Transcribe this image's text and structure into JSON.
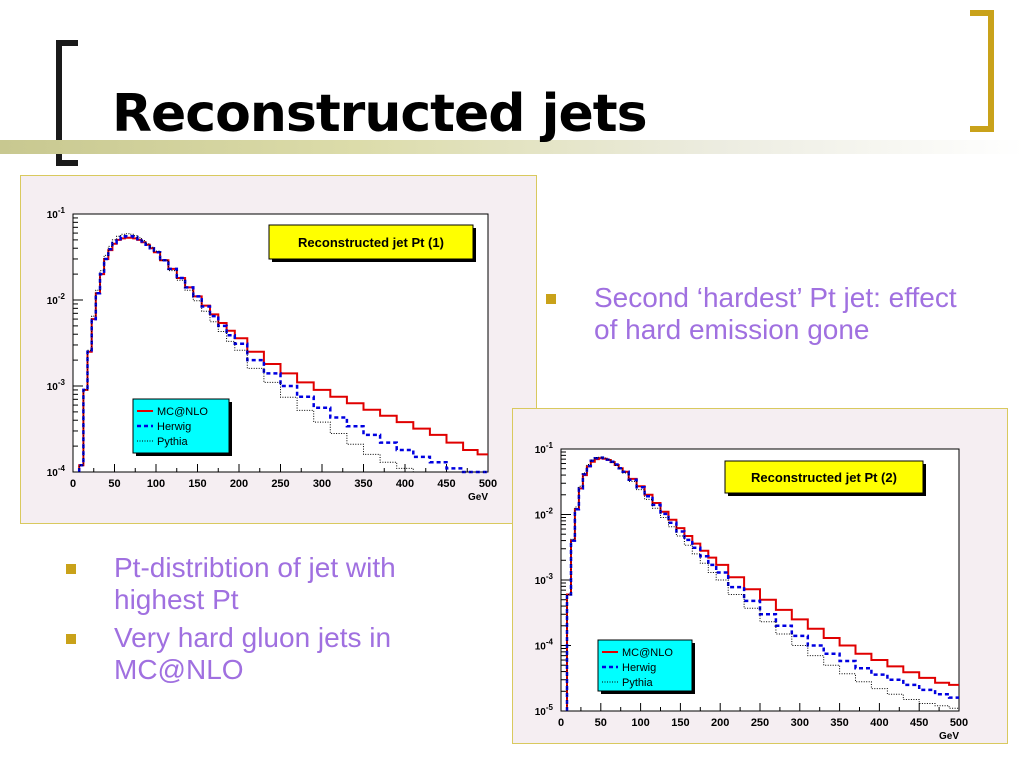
{
  "slide": {
    "title": "Reconstructed jets",
    "accent_color": "#c9a21a",
    "text_color": "#a070e0"
  },
  "bullets_right": [
    "Second ‘hardest’ Pt jet: effect of hard emission gone"
  ],
  "bullets_left": [
    "Pt-distribtion of jet with highest Pt",
    "Very hard gluon jets in MC@NLO"
  ],
  "chart_data": [
    {
      "type": "line",
      "title": "Reconstructed jet Pt (1)",
      "xlabel": "GeV",
      "ylabel": "",
      "xlim": [
        0,
        500
      ],
      "ylim": [
        0.0001,
        0.1
      ],
      "yscale": "log",
      "x_ticks": [
        "0",
        "50",
        "100",
        "150",
        "200",
        "250",
        "300",
        "350",
        "400",
        "450",
        "500"
      ],
      "y_ticks": [
        {
          "base": "10",
          "exp": "-1",
          "value": 0.1
        },
        {
          "base": "10",
          "exp": "-2",
          "value": 0.01
        },
        {
          "base": "10",
          "exp": "-3",
          "value": 0.001
        },
        {
          "base": "10",
          "exp": "-4",
          "value": 0.0001
        }
      ],
      "legend_position": "lower-left",
      "x": [
        10,
        15,
        20,
        25,
        30,
        35,
        40,
        45,
        50,
        55,
        60,
        65,
        70,
        75,
        80,
        85,
        90,
        95,
        100,
        110,
        120,
        130,
        140,
        150,
        160,
        170,
        180,
        190,
        200,
        220,
        240,
        260,
        280,
        300,
        320,
        340,
        360,
        380,
        400,
        420,
        440,
        460,
        480,
        495
      ],
      "series": [
        {
          "name": "MC@NLO",
          "color": "#e00000",
          "style": "solid",
          "values": [
            0.00012,
            0.0009,
            0.0025,
            0.006,
            0.012,
            0.02,
            0.03,
            0.038,
            0.045,
            0.05,
            0.052,
            0.053,
            0.053,
            0.052,
            0.05,
            0.047,
            0.044,
            0.04,
            0.036,
            0.029,
            0.023,
            0.018,
            0.014,
            0.011,
            0.0086,
            0.0068,
            0.0054,
            0.0044,
            0.0036,
            0.0025,
            0.0018,
            0.0014,
            0.0011,
            0.0009,
            0.00075,
            0.00063,
            0.00053,
            0.00045,
            0.00038,
            0.00032,
            0.00027,
            0.00022,
            0.00018,
            0.00016
          ]
        },
        {
          "name": "Herwig",
          "color": "#0000e0",
          "style": "dashed",
          "values": [
            0.00012,
            0.0009,
            0.0025,
            0.006,
            0.012,
            0.02,
            0.03,
            0.039,
            0.046,
            0.051,
            0.054,
            0.055,
            0.055,
            0.054,
            0.051,
            0.048,
            0.044,
            0.04,
            0.036,
            0.029,
            0.023,
            0.018,
            0.014,
            0.011,
            0.0084,
            0.0065,
            0.005,
            0.0039,
            0.0031,
            0.002,
            0.0014,
            0.001,
            0.00075,
            0.00056,
            0.00043,
            0.00034,
            0.00027,
            0.00022,
            0.00018,
            0.00015,
            0.00013,
            0.00011,
            0.0001,
            0.0001
          ]
        },
        {
          "name": "Pythia",
          "color": "#000000",
          "style": "dotted",
          "values": [
            0.00012,
            0.0009,
            0.0026,
            0.0065,
            0.013,
            0.022,
            0.033,
            0.042,
            0.05,
            0.055,
            0.058,
            0.059,
            0.058,
            0.056,
            0.053,
            0.049,
            0.045,
            0.041,
            0.037,
            0.029,
            0.022,
            0.017,
            0.013,
            0.0098,
            0.0074,
            0.0056,
            0.0043,
            0.0033,
            0.0026,
            0.0016,
            0.0011,
            0.00074,
            0.00052,
            0.00038,
            0.00028,
            0.00021,
            0.00016,
            0.00013,
            0.00011,
            0.0001,
            0.0001,
            0.0001,
            0.0001,
            0.0001
          ]
        }
      ]
    },
    {
      "type": "line",
      "title": "Reconstructed jet Pt (2)",
      "xlabel": "GeV",
      "ylabel": "",
      "xlim": [
        0,
        500
      ],
      "ylim": [
        1e-05,
        0.1
      ],
      "yscale": "log",
      "x_ticks": [
        "0",
        "50",
        "100",
        "150",
        "200",
        "250",
        "300",
        "350",
        "400",
        "450",
        "500"
      ],
      "y_ticks": [
        {
          "base": "10",
          "exp": "-1",
          "value": 0.1
        },
        {
          "base": "10",
          "exp": "-2",
          "value": 0.01
        },
        {
          "base": "10",
          "exp": "-3",
          "value": 0.001
        },
        {
          "base": "10",
          "exp": "-4",
          "value": 0.0001
        },
        {
          "base": "10",
          "exp": "-5",
          "value": 1e-05
        }
      ],
      "legend_position": "lower-left",
      "x": [
        10,
        15,
        20,
        25,
        30,
        35,
        40,
        45,
        50,
        55,
        60,
        65,
        70,
        75,
        80,
        90,
        100,
        110,
        120,
        130,
        140,
        150,
        160,
        170,
        180,
        190,
        200,
        220,
        240,
        260,
        280,
        300,
        320,
        340,
        360,
        380,
        400,
        420,
        440,
        460,
        480,
        495
      ],
      "series": [
        {
          "name": "MC@NLO",
          "color": "#e00000",
          "style": "solid",
          "values": [
            0.0006,
            0.004,
            0.012,
            0.025,
            0.04,
            0.054,
            0.064,
            0.07,
            0.072,
            0.071,
            0.068,
            0.063,
            0.057,
            0.051,
            0.045,
            0.035,
            0.027,
            0.02,
            0.015,
            0.011,
            0.0083,
            0.0062,
            0.0047,
            0.0036,
            0.0028,
            0.0022,
            0.0017,
            0.0011,
            0.00072,
            0.0005,
            0.00035,
            0.00025,
            0.00018,
            0.00013,
            0.0001,
            7.5e-05,
            6e-05,
            4.8e-05,
            3.9e-05,
            3.2e-05,
            2.7e-05,
            2.5e-05
          ]
        },
        {
          "name": "Herwig",
          "color": "#0000e0",
          "style": "dashed",
          "values": [
            0.0006,
            0.004,
            0.012,
            0.025,
            0.041,
            0.055,
            0.066,
            0.072,
            0.074,
            0.073,
            0.069,
            0.064,
            0.058,
            0.051,
            0.045,
            0.034,
            0.026,
            0.019,
            0.014,
            0.0102,
            0.0075,
            0.0055,
            0.0041,
            0.0031,
            0.0023,
            0.0017,
            0.0013,
            0.00078,
            0.00048,
            0.0003,
            0.0002,
            0.00014,
            0.0001,
            7.5e-05,
            5.8e-05,
            4.5e-05,
            3.6e-05,
            3e-05,
            2.5e-05,
            2.1e-05,
            1.8e-05,
            1.6e-05
          ]
        },
        {
          "name": "Pythia",
          "color": "#000000",
          "style": "dotted",
          "values": [
            0.0006,
            0.0042,
            0.013,
            0.027,
            0.043,
            0.058,
            0.068,
            0.074,
            0.075,
            0.073,
            0.069,
            0.063,
            0.056,
            0.05,
            0.043,
            0.032,
            0.024,
            0.017,
            0.0125,
            0.009,
            0.0065,
            0.0047,
            0.0034,
            0.0025,
            0.0018,
            0.0013,
            0.001,
            0.0006,
            0.00037,
            0.00023,
            0.00015,
            0.0001,
            7e-05,
            5e-05,
            3.7e-05,
            2.8e-05,
            2.2e-05,
            1.8e-05,
            1.5e-05,
            1.3e-05,
            1.2e-05,
            1.1e-05
          ]
        }
      ]
    }
  ]
}
